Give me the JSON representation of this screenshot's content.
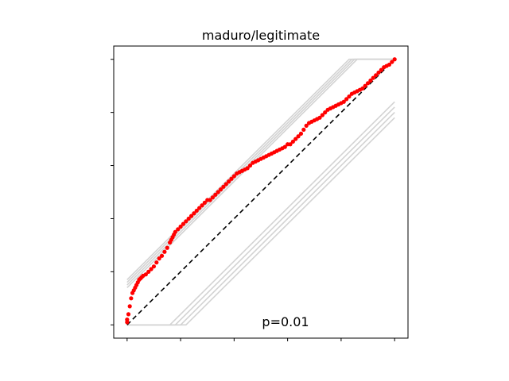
{
  "chart_data": {
    "type": "scatter",
    "title": "maduro/legitimate",
    "annotation": "p=0.01",
    "xlabel": "",
    "ylabel": "",
    "xlim": [
      -0.05,
      1.05
    ],
    "ylim": [
      -0.05,
      1.05
    ],
    "x_ticks": [
      0,
      0.2,
      0.4,
      0.6,
      0.8,
      1.0
    ],
    "y_ticks": [
      0,
      0.2,
      0.4,
      0.6,
      0.8,
      1.0
    ],
    "tick_labels_visible": false,
    "grid": false,
    "reference_line": {
      "x": [
        0,
        1
      ],
      "y": [
        0,
        1
      ],
      "color": "#000000",
      "style": "dashed"
    },
    "envelope_color": "#d3d3d3",
    "point_color": "#ff0000",
    "envelopes": [
      {
        "upper_offset": 0.16,
        "lower_offset": 0.16
      },
      {
        "upper_offset": 0.14,
        "lower_offset": 0.18
      },
      {
        "upper_offset": 0.17,
        "lower_offset": 0.2
      },
      {
        "upper_offset": 0.15,
        "lower_offset": 0.22
      }
    ],
    "series": [
      {
        "x": [
          0.0,
          0.0,
          0.005,
          0.01,
          0.015,
          0.02,
          0.025,
          0.03,
          0.035,
          0.04,
          0.045,
          0.05,
          0.055,
          0.06,
          0.07,
          0.08,
          0.09,
          0.1,
          0.11,
          0.12,
          0.13,
          0.14,
          0.15,
          0.16,
          0.165,
          0.17,
          0.175,
          0.18,
          0.19,
          0.2,
          0.21,
          0.22,
          0.23,
          0.24,
          0.25,
          0.26,
          0.27,
          0.28,
          0.29,
          0.3,
          0.31,
          0.32,
          0.33,
          0.34,
          0.35,
          0.36,
          0.37,
          0.38,
          0.39,
          0.4,
          0.41,
          0.42,
          0.43,
          0.44,
          0.45,
          0.46,
          0.47,
          0.48,
          0.49,
          0.5,
          0.51,
          0.52,
          0.53,
          0.54,
          0.55,
          0.56,
          0.57,
          0.58,
          0.59,
          0.6,
          0.61,
          0.62,
          0.63,
          0.64,
          0.65,
          0.66,
          0.67,
          0.68,
          0.69,
          0.7,
          0.71,
          0.72,
          0.73,
          0.74,
          0.75,
          0.76,
          0.77,
          0.78,
          0.79,
          0.8,
          0.81,
          0.82,
          0.83,
          0.84,
          0.85,
          0.86,
          0.87,
          0.88,
          0.89,
          0.9,
          0.91,
          0.92,
          0.93,
          0.94,
          0.95,
          0.96,
          0.97,
          0.98,
          0.99,
          1.0
        ],
        "y": [
          0.01,
          0.02,
          0.04,
          0.07,
          0.1,
          0.12,
          0.13,
          0.14,
          0.15,
          0.16,
          0.17,
          0.175,
          0.18,
          0.185,
          0.19,
          0.2,
          0.21,
          0.22,
          0.235,
          0.25,
          0.26,
          0.275,
          0.29,
          0.31,
          0.32,
          0.33,
          0.34,
          0.35,
          0.36,
          0.37,
          0.38,
          0.39,
          0.4,
          0.41,
          0.42,
          0.43,
          0.44,
          0.45,
          0.46,
          0.47,
          0.47,
          0.48,
          0.49,
          0.5,
          0.51,
          0.52,
          0.53,
          0.54,
          0.55,
          0.56,
          0.57,
          0.575,
          0.58,
          0.585,
          0.59,
          0.6,
          0.61,
          0.615,
          0.62,
          0.625,
          0.63,
          0.635,
          0.64,
          0.645,
          0.65,
          0.655,
          0.66,
          0.665,
          0.67,
          0.68,
          0.68,
          0.69,
          0.7,
          0.71,
          0.72,
          0.735,
          0.75,
          0.76,
          0.765,
          0.77,
          0.775,
          0.78,
          0.79,
          0.8,
          0.81,
          0.815,
          0.82,
          0.825,
          0.83,
          0.835,
          0.84,
          0.85,
          0.86,
          0.87,
          0.875,
          0.88,
          0.885,
          0.89,
          0.9,
          0.91,
          0.92,
          0.93,
          0.94,
          0.95,
          0.96,
          0.97,
          0.975,
          0.98,
          0.99,
          1.0
        ]
      }
    ]
  }
}
